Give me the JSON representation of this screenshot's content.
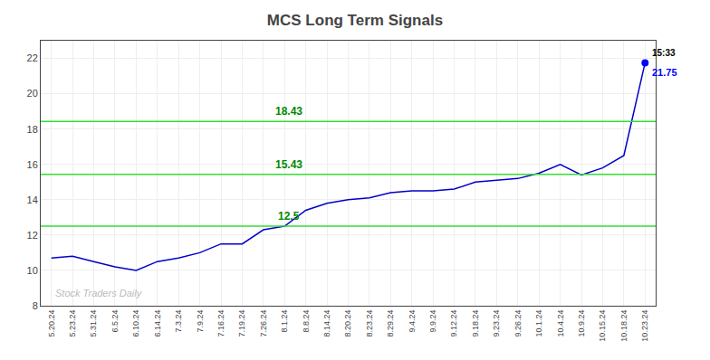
{
  "chart_data": {
    "type": "line",
    "title": "MCS Long Term Signals",
    "categories": [
      "5.20.24",
      "5.23.24",
      "5.31.24",
      "6.5.24",
      "6.10.24",
      "6.14.24",
      "7.3.24",
      "7.9.24",
      "7.16.24",
      "7.19.24",
      "7.26.24",
      "8.1.24",
      "8.8.24",
      "8.14.24",
      "8.20.24",
      "8.23.24",
      "8.29.24",
      "9.4.24",
      "9.9.24",
      "9.12.24",
      "9.18.24",
      "9.23.24",
      "9.26.24",
      "10.1.24",
      "10.4.24",
      "10.9.24",
      "10.15.24",
      "10.18.24",
      "10.23.24"
    ],
    "values": [
      10.7,
      10.8,
      10.5,
      10.2,
      10.0,
      10.5,
      10.7,
      11.0,
      11.5,
      11.5,
      12.3,
      12.5,
      13.4,
      13.8,
      14.0,
      14.1,
      14.4,
      14.5,
      14.5,
      14.6,
      15.0,
      15.1,
      15.2,
      15.5,
      16.0,
      15.4,
      15.8,
      16.5,
      21.75
    ],
    "color": "#0000cc",
    "ylim": [
      8,
      23
    ],
    "yticks": [
      8,
      10,
      12,
      14,
      16,
      18,
      20,
      22
    ],
    "grid": true,
    "hlines": [
      {
        "value": 18.43,
        "label": "18.43",
        "color": "#33dd33",
        "label_color": "#008800"
      },
      {
        "value": 15.43,
        "label": "15.43",
        "color": "#33dd33",
        "label_color": "#008800"
      },
      {
        "value": 12.5,
        "label": "12.5",
        "color": "#33dd33",
        "label_color": "#008800"
      }
    ],
    "last_point": {
      "value": 21.75,
      "label": "21.75",
      "time": "15:33",
      "color": "#0000ff",
      "marker": "circle"
    },
    "annotations": [
      {
        "text": "Stock Traders Daily",
        "color": "#bbbbbb"
      }
    ]
  }
}
